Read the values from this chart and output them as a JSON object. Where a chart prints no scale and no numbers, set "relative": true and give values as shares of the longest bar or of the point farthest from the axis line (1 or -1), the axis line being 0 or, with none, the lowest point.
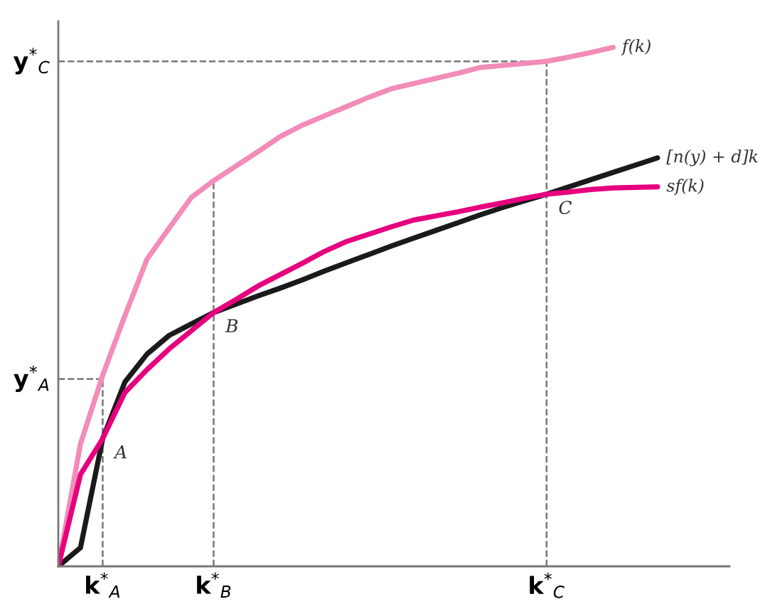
{
  "chart_data": {
    "type": "line",
    "relative": true,
    "categories": [
      null,
      null,
      "k$^{*}$$_{A}$",
      null,
      null,
      null,
      null,
      "k$^{*}$$_{B}$",
      null,
      null,
      null,
      null,
      null,
      null,
      null,
      null,
      null,
      null,
      null,
      null,
      null,
      null,
      "k$^{*}$$_{C}$",
      null,
      null,
      null,
      null,
      null
    ],
    "series": [
      {
        "name": "f(k)",
        "color": "#f28cb8",
        "values": [
          0,
          0.236,
          0.368,
          0.483,
          0.592,
          0.652,
          0.711,
          0.743,
          0.771,
          0.799,
          0.828,
          0.85,
          0.868,
          0.886,
          0.904,
          0.92,
          0.93,
          0.94,
          0.95,
          0.961,
          0.965,
          0.969,
          0.973,
          0.981,
          0.99,
          1,
          null,
          null
        ]
      },
      {
        "name": "[n(y) + d]k",
        "color": "#1a1a1a",
        "values": [
          0,
          0.036,
          0.246,
          0.355,
          0.409,
          0.445,
          0.467,
          0.489,
          0.505,
          0.521,
          0.536,
          0.552,
          0.569,
          0.585,
          0.601,
          0.617,
          0.632,
          0.647,
          0.662,
          0.677,
          0.691,
          0.704,
          0.717,
          0.731,
          0.745,
          0.759,
          0.773,
          0.787
        ]
      },
      {
        "name": "sf(k)",
        "color": "#e6007e",
        "values": [
          0,
          0.177,
          0.246,
          0.335,
          0.379,
          0.419,
          0.454,
          0.489,
          0.514,
          0.54,
          0.562,
          0.584,
          0.607,
          0.626,
          0.64,
          0.654,
          0.667,
          0.675,
          0.683,
          0.692,
          0.7,
          0.709,
          0.717,
          0.721,
          0.726,
          0.729,
          0.73,
          0.731
        ]
      }
    ],
    "ref_lines": [
      {
        "axis": "x",
        "value": "k$^{*}$$_{A}$",
        "color": "#777777",
        "line_style": "dashed"
      },
      {
        "axis": "x",
        "value": "k$^{*}$$_{B}$",
        "color": "#777777",
        "line_style": "dashed"
      },
      {
        "axis": "x",
        "value": "k$^{*}$$_{C}$",
        "color": "#777777",
        "line_style": "dashed"
      },
      {
        "axis": "y",
        "value": 0.361,
        "label": "y$^{*}$$_{A}$",
        "color": "#777777",
        "line_style": "dashed"
      },
      {
        "axis": "y",
        "value": 0.973,
        "label": "y$^{*}$$_{C}$",
        "color": "#777777",
        "line_style": "dashed"
      }
    ],
    "annotations": [
      {
        "text": "A",
        "x": "k$^{*}$$_{A}$",
        "y": 0.246
      },
      {
        "text": "B",
        "x": "k$^{*}$$_{B}$",
        "y": 0.489
      },
      {
        "text": "C",
        "x": "k$^{*}$$_{C}$",
        "y": 0.717
      }
    ],
    "legend": false,
    "grid": false,
    "marker": "none",
    "line_style": "solid"
  }
}
